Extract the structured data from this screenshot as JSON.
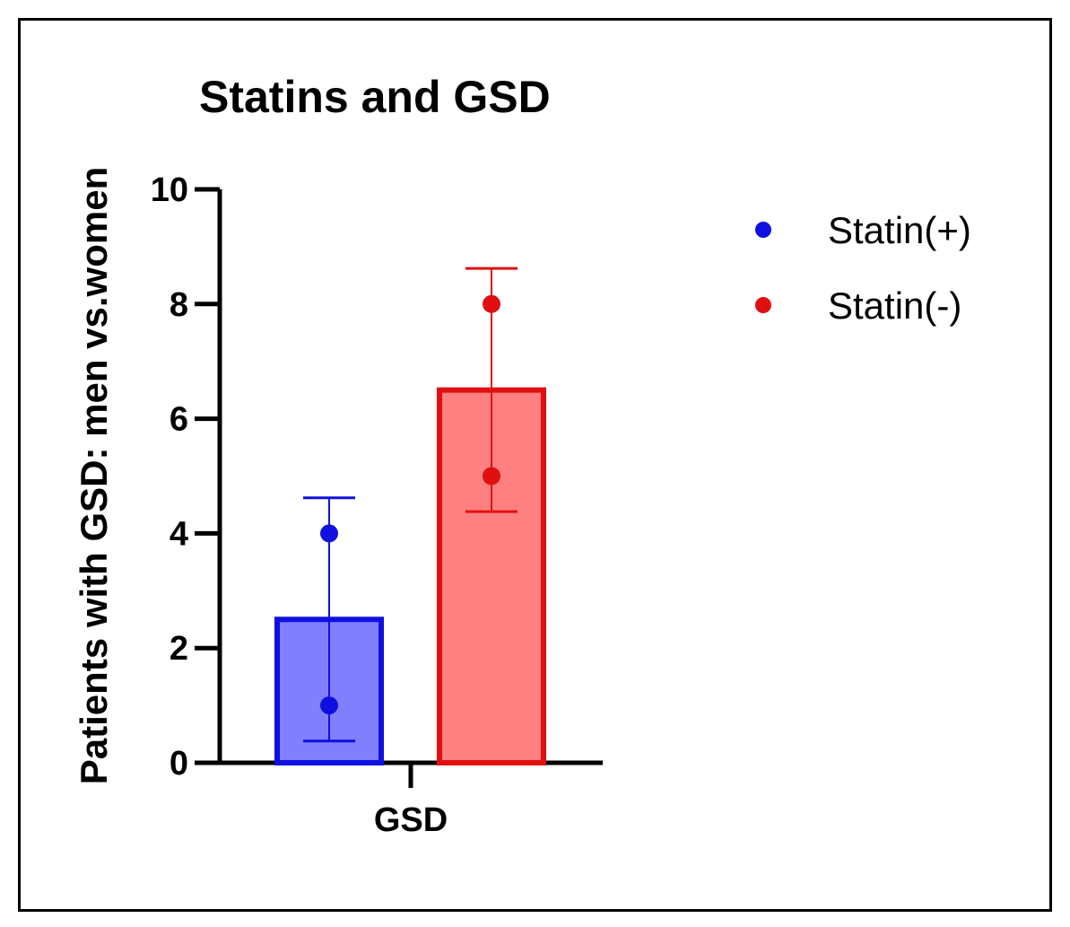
{
  "chart_data": {
    "type": "bar",
    "title": "Statins and GSD",
    "xlabel": "",
    "ylabel": "Patients with GSD: men vs.women",
    "categories": [
      "GSD"
    ],
    "ylim": [
      0,
      10
    ],
    "yticks": [
      0,
      2,
      4,
      6,
      8,
      10
    ],
    "series": [
      {
        "name": "Statin(+)",
        "values": [
          2.5
        ],
        "error": [
          2.12
        ],
        "points": [
          1,
          4
        ],
        "color": "#1010e0",
        "fill": "#8080ff"
      },
      {
        "name": "Statin(-)",
        "values": [
          6.5
        ],
        "error": [
          2.12
        ],
        "points": [
          5,
          8
        ],
        "color": "#e01010",
        "fill": "#ff8080"
      }
    ],
    "legend": "right"
  }
}
